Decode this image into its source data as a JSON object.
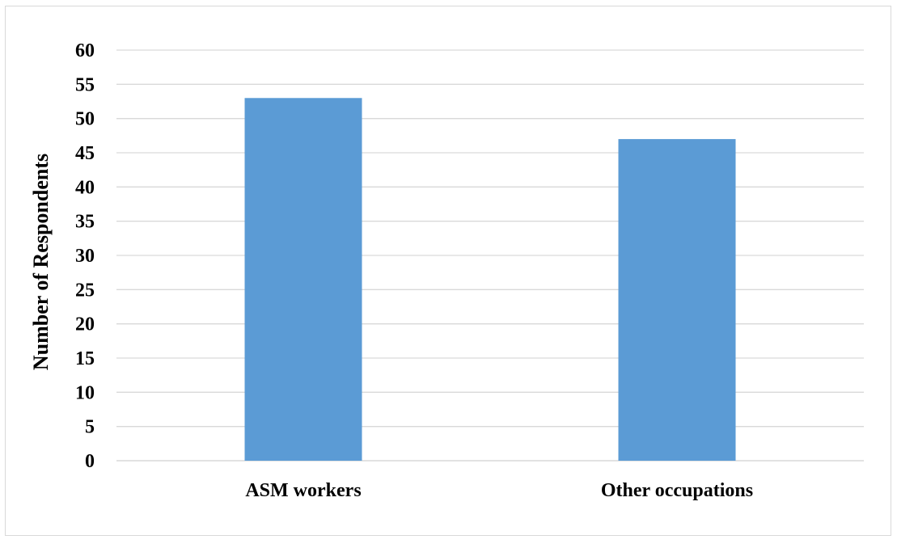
{
  "chart_data": {
    "type": "bar",
    "title": "",
    "xlabel": "",
    "ylabel": "Number of Respondents",
    "categories": [
      "ASM workers",
      "Other occupations"
    ],
    "values": [
      53,
      47
    ],
    "ylim": [
      0,
      60
    ],
    "yticks": [
      0,
      5,
      10,
      15,
      20,
      25,
      30,
      35,
      40,
      45,
      50,
      55,
      60
    ],
    "grid": true,
    "legend": "none",
    "bar_color": "#5b9bd5",
    "grid_color": "#d9d9d9"
  }
}
